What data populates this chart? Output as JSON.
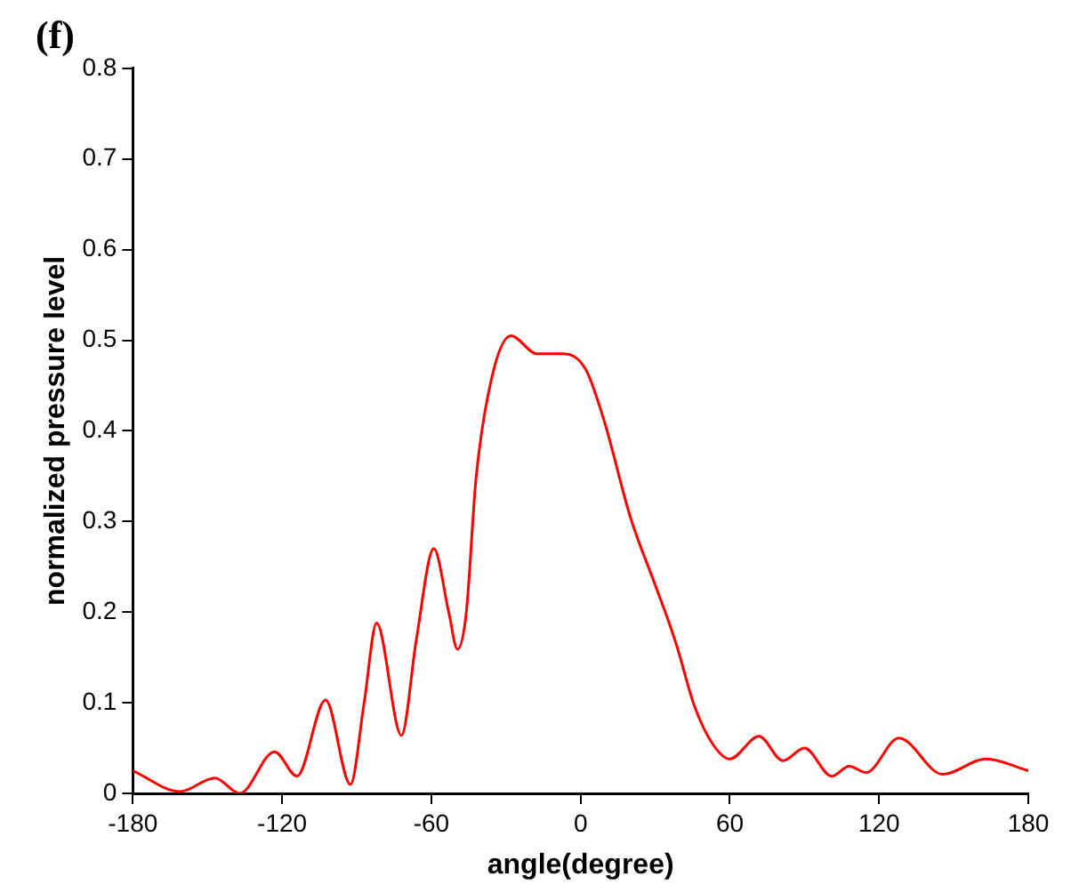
{
  "chart_data": {
    "type": "line",
    "title": "(f)",
    "xlabel": "angle(degree)",
    "ylabel": "normalized pressure level",
    "x": [
      -180,
      -161,
      -147,
      -137,
      -123,
      -114,
      -102.5,
      -92.5,
      -87,
      -82,
      -72,
      -66,
      -59,
      -53,
      -49.5,
      -46,
      -42,
      -35.5,
      -28,
      -17.5,
      -7,
      2,
      9.5,
      20,
      30,
      36,
      39,
      45.7,
      53.5,
      60,
      71.7,
      81.4,
      90,
      101,
      108,
      114.8,
      128,
      145.6,
      163,
      180
    ],
    "series": [
      {
        "color": "#ff0000",
        "values": [
          0.025,
          0.002,
          0.017,
          0.0,
          0.046,
          0.019,
          0.103,
          0.01,
          0.1,
          0.188,
          0.064,
          0.17,
          0.27,
          0.2,
          0.159,
          0.198,
          0.348,
          0.461,
          0.505,
          0.485,
          0.485,
          0.468,
          0.411,
          0.305,
          0.23,
          0.185,
          0.16,
          0.097,
          0.053,
          0.038,
          0.063,
          0.036,
          0.05,
          0.019,
          0.03,
          0.023,
          0.061,
          0.021,
          0.038,
          0.025
        ]
      }
    ],
    "xlim": [
      -180,
      180
    ],
    "xticks": [
      -180,
      -120,
      -60,
      0,
      60,
      120,
      180
    ],
    "ylim": [
      0,
      0.8
    ],
    "yticks": [
      0,
      0.1,
      0.2,
      0.3,
      0.4,
      0.5,
      0.6,
      0.7,
      0.8
    ],
    "grid": false,
    "legend": false,
    "marker": "none",
    "line_style": "solid"
  }
}
